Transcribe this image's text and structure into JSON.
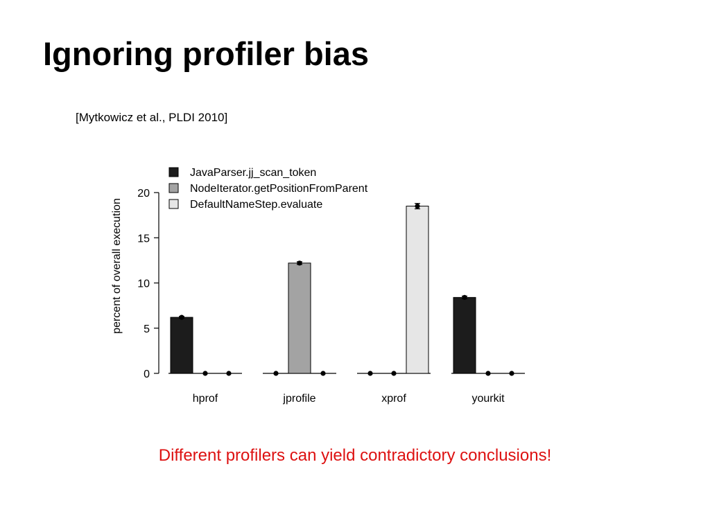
{
  "slide": {
    "title": "Ignoring profiler bias",
    "citation": "[Mytkowicz et al., PLDI 2010]",
    "conclusion": "Different profilers can yield contradictory conclusions!",
    "conclusion_color": "#dd1111"
  },
  "chart_data": {
    "type": "bar",
    "categories": [
      "hprof",
      "jprofile",
      "xprof",
      "yourkit"
    ],
    "series": [
      {
        "name": "JavaParser.jj_scan_token",
        "color": "#1c1c1c",
        "values": [
          6.2,
          0,
          0,
          8.4
        ],
        "errors": [
          0.1,
          0,
          0,
          0.15
        ]
      },
      {
        "name": "NodeIterator.getPositionFromParent",
        "color": "#a3a3a3",
        "values": [
          0,
          12.2,
          0,
          0
        ],
        "errors": [
          0,
          0.15,
          0,
          0
        ]
      },
      {
        "name": "DefaultNameStep.evaluate",
        "color": "#e6e6e6",
        "values": [
          0,
          0,
          18.5,
          0
        ],
        "errors": [
          0,
          0,
          0.3,
          0
        ]
      }
    ],
    "ylabel": "percent of overall execution",
    "xlabel": "",
    "title": "",
    "ylim": [
      0,
      20
    ],
    "yticks": [
      0,
      5,
      10,
      15,
      20
    ],
    "legend_position": "top-left",
    "grid": false
  }
}
